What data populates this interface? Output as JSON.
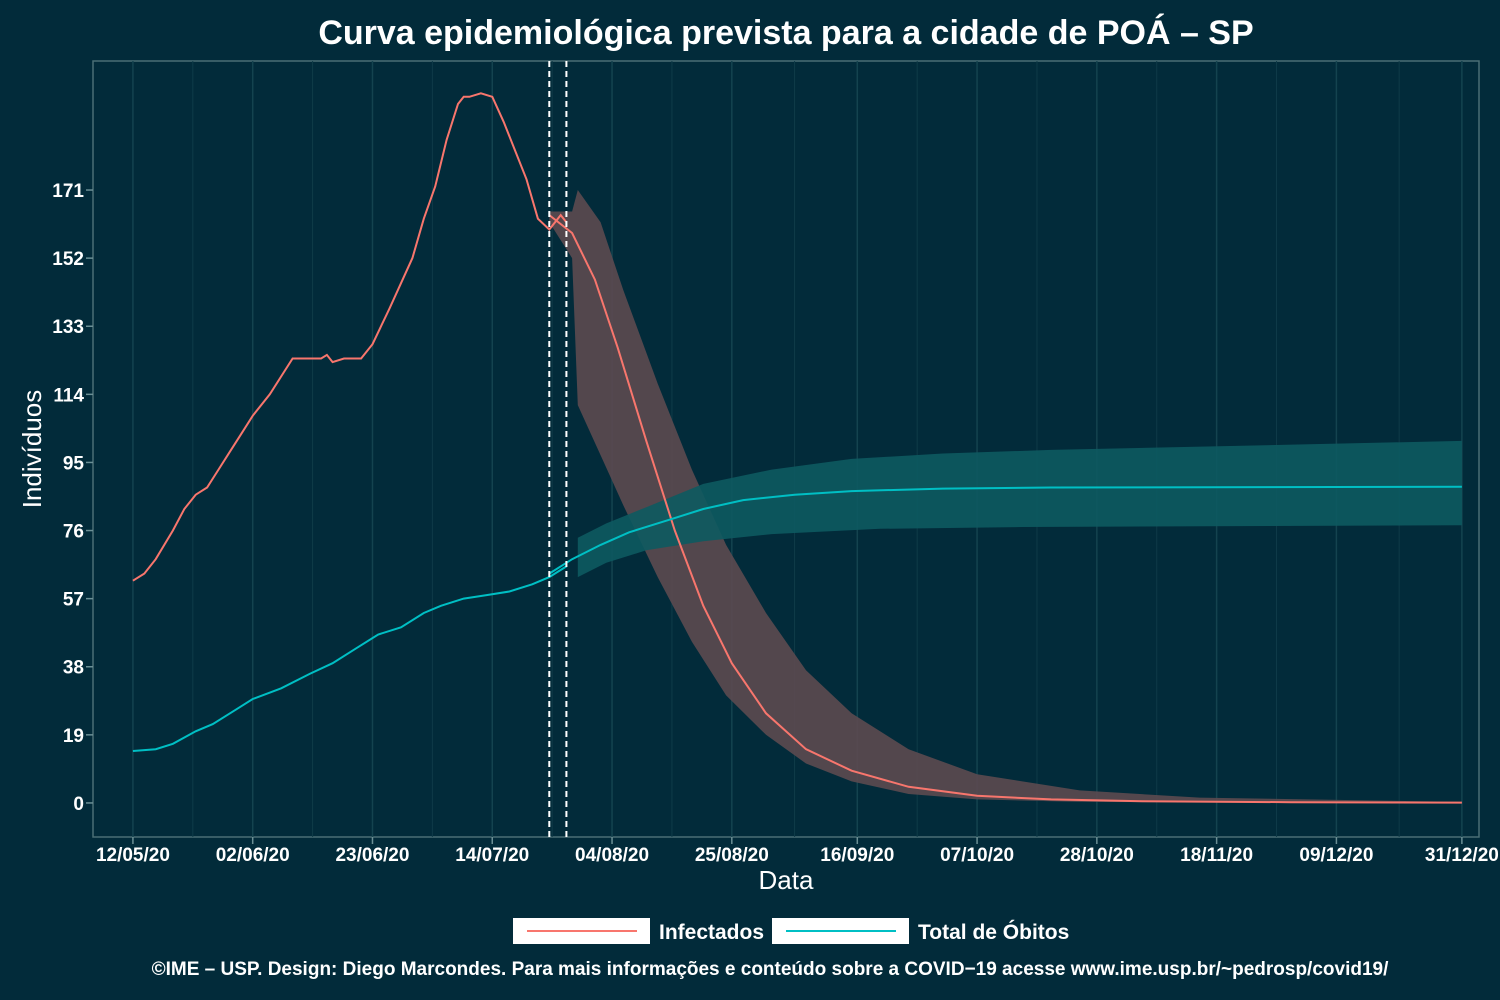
{
  "chart_data": {
    "type": "line",
    "title": "Curva epidemiológica prevista para a cidade de POÁ – SP",
    "xlabel": "Data",
    "ylabel": "Indivíduos",
    "x_ticks": [
      "12/05/20",
      "02/06/20",
      "23/06/20",
      "14/07/20",
      "04/08/20",
      "25/08/20",
      "16/09/20",
      "07/10/20",
      "28/10/20",
      "18/11/20",
      "09/12/20",
      "31/12/20"
    ],
    "y_ticks": [
      0,
      19,
      38,
      57,
      76,
      95,
      114,
      133,
      152,
      171
    ],
    "xlim": [
      "2020-05-05",
      "2021-01-03"
    ],
    "ylim": [
      -9.5,
      207
    ],
    "grid": true,
    "legend_position": "bottom",
    "vlines": [
      "2020-07-24",
      "2020-07-27"
    ],
    "series": [
      {
        "name": "Infectados",
        "color": "#f8766d",
        "band_color": "#5c4a50",
        "observed": [
          [
            "2020-05-12",
            62
          ],
          [
            "2020-05-14",
            64
          ],
          [
            "2020-05-16",
            68
          ],
          [
            "2020-05-19",
            76
          ],
          [
            "2020-05-21",
            82
          ],
          [
            "2020-05-23",
            86
          ],
          [
            "2020-05-25",
            88
          ],
          [
            "2020-05-27",
            93
          ],
          [
            "2020-05-29",
            98
          ],
          [
            "2020-05-31",
            103
          ],
          [
            "2020-06-02",
            108
          ],
          [
            "2020-06-05",
            114
          ],
          [
            "2020-06-07",
            119
          ],
          [
            "2020-06-09",
            124
          ],
          [
            "2020-06-12",
            124
          ],
          [
            "2020-06-14",
            124
          ],
          [
            "2020-06-15",
            125
          ],
          [
            "2020-06-16",
            123
          ],
          [
            "2020-06-18",
            124
          ],
          [
            "2020-06-21",
            124
          ],
          [
            "2020-06-23",
            128
          ],
          [
            "2020-06-26",
            138
          ],
          [
            "2020-06-28",
            145
          ],
          [
            "2020-06-30",
            152
          ],
          [
            "2020-07-02",
            163
          ],
          [
            "2020-07-04",
            172
          ],
          [
            "2020-07-06",
            185
          ],
          [
            "2020-07-08",
            195
          ],
          [
            "2020-07-09",
            197
          ],
          [
            "2020-07-10",
            197
          ],
          [
            "2020-07-12",
            198
          ],
          [
            "2020-07-14",
            197
          ],
          [
            "2020-07-16",
            190
          ],
          [
            "2020-07-18",
            182
          ],
          [
            "2020-07-20",
            174
          ],
          [
            "2020-07-22",
            163
          ],
          [
            "2020-07-24",
            160
          ],
          [
            "2020-07-26",
            164
          ],
          [
            "2020-07-27",
            162
          ]
        ],
        "forecast": [
          [
            "2020-07-24",
            164
          ],
          [
            "2020-07-28",
            159
          ],
          [
            "2020-08-01",
            146
          ],
          [
            "2020-08-05",
            127
          ],
          [
            "2020-08-10",
            101
          ],
          [
            "2020-08-15",
            76
          ],
          [
            "2020-08-20",
            55
          ],
          [
            "2020-08-25",
            39
          ],
          [
            "2020-08-31",
            25
          ],
          [
            "2020-09-07",
            15
          ],
          [
            "2020-09-15",
            9
          ],
          [
            "2020-09-25",
            4.5
          ],
          [
            "2020-10-07",
            2
          ],
          [
            "2020-10-20",
            1
          ],
          [
            "2020-11-05",
            0.5
          ],
          [
            "2020-12-01",
            0.2
          ],
          [
            "2020-12-31",
            0.1
          ]
        ],
        "band_lower": [
          [
            "2020-07-24",
            162
          ],
          [
            "2020-07-28",
            152
          ],
          [
            "2020-07-29",
            111
          ],
          [
            "2020-08-02",
            97
          ],
          [
            "2020-08-06",
            83
          ],
          [
            "2020-08-12",
            63
          ],
          [
            "2020-08-18",
            45
          ],
          [
            "2020-08-24",
            30
          ],
          [
            "2020-08-31",
            19
          ],
          [
            "2020-09-07",
            11
          ],
          [
            "2020-09-15",
            6
          ],
          [
            "2020-09-25",
            2.5
          ],
          [
            "2020-10-07",
            1
          ],
          [
            "2020-10-25",
            0.3
          ],
          [
            "2020-12-31",
            0
          ]
        ],
        "band_upper": [
          [
            "2020-07-24",
            165
          ],
          [
            "2020-07-28",
            165
          ],
          [
            "2020-07-29",
            171
          ],
          [
            "2020-08-02",
            162
          ],
          [
            "2020-08-06",
            143
          ],
          [
            "2020-08-12",
            117
          ],
          [
            "2020-08-18",
            93
          ],
          [
            "2020-08-24",
            72
          ],
          [
            "2020-08-31",
            53
          ],
          [
            "2020-09-07",
            37
          ],
          [
            "2020-09-15",
            25
          ],
          [
            "2020-09-25",
            15
          ],
          [
            "2020-10-07",
            8
          ],
          [
            "2020-10-25",
            3.5
          ],
          [
            "2020-11-15",
            1.5
          ],
          [
            "2020-12-31",
            0.3
          ]
        ]
      },
      {
        "name": "Total de Óbitos",
        "color": "#00bfc4",
        "band_color": "#0d5a61",
        "observed": [
          [
            "2020-05-12",
            14.5
          ],
          [
            "2020-05-16",
            15
          ],
          [
            "2020-05-19",
            16.5
          ],
          [
            "2020-05-23",
            20
          ],
          [
            "2020-05-26",
            22
          ],
          [
            "2020-05-30",
            26
          ],
          [
            "2020-06-02",
            29
          ],
          [
            "2020-06-07",
            32
          ],
          [
            "2020-06-12",
            36
          ],
          [
            "2020-06-16",
            39
          ],
          [
            "2020-06-20",
            43
          ],
          [
            "2020-06-24",
            47
          ],
          [
            "2020-06-28",
            49
          ],
          [
            "2020-07-02",
            53
          ],
          [
            "2020-07-05",
            55
          ],
          [
            "2020-07-09",
            57
          ],
          [
            "2020-07-13",
            58
          ],
          [
            "2020-07-17",
            59
          ],
          [
            "2020-07-21",
            61
          ],
          [
            "2020-07-24",
            63
          ],
          [
            "2020-07-27",
            66
          ]
        ],
        "forecast": [
          [
            "2020-07-24",
            64
          ],
          [
            "2020-07-28",
            68
          ],
          [
            "2020-08-02",
            72
          ],
          [
            "2020-08-07",
            75.5
          ],
          [
            "2020-08-14",
            79
          ],
          [
            "2020-08-20",
            82
          ],
          [
            "2020-08-27",
            84.5
          ],
          [
            "2020-09-05",
            86
          ],
          [
            "2020-09-15",
            87
          ],
          [
            "2020-10-01",
            87.7
          ],
          [
            "2020-10-20",
            88
          ],
          [
            "2020-12-31",
            88.2
          ]
        ],
        "band_lower": [
          [
            "2020-07-29",
            63
          ],
          [
            "2020-08-03",
            67
          ],
          [
            "2020-08-10",
            70.5
          ],
          [
            "2020-08-20",
            73
          ],
          [
            "2020-09-01",
            75
          ],
          [
            "2020-09-20",
            76.5
          ],
          [
            "2020-10-15",
            77
          ],
          [
            "2020-12-31",
            77.5
          ]
        ],
        "band_upper": [
          [
            "2020-07-29",
            74
          ],
          [
            "2020-08-03",
            78
          ],
          [
            "2020-08-10",
            82.5
          ],
          [
            "2020-08-20",
            89
          ],
          [
            "2020-09-01",
            93
          ],
          [
            "2020-09-15",
            96
          ],
          [
            "2020-10-01",
            97.5
          ],
          [
            "2020-10-20",
            98.5
          ],
          [
            "2020-12-31",
            101
          ]
        ]
      }
    ]
  },
  "footer": "©IME – USP. Design: Diego Marcondes. Para mais informações e conteúdo sobre a COVID−19 acesse www.ime.usp.br/~pedrosp/covid19/"
}
